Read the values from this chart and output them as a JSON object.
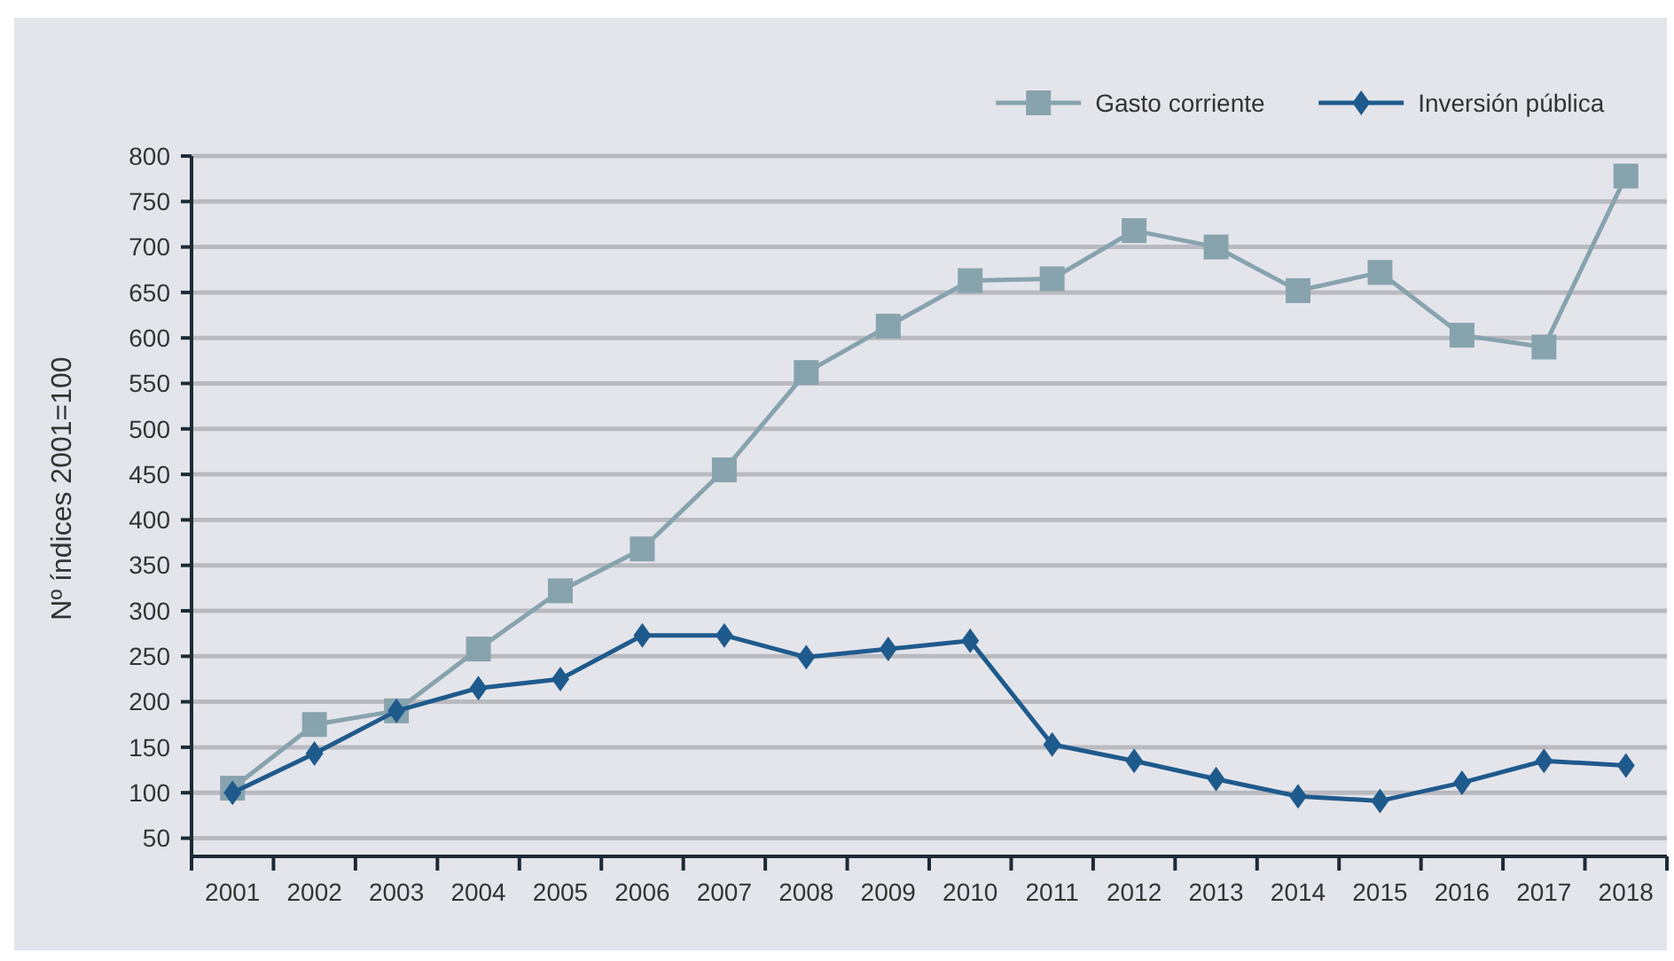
{
  "chart_data": {
    "type": "line",
    "ylabel": "Nº índices 2001=100",
    "categories": [
      "2001",
      "2002",
      "2003",
      "2004",
      "2005",
      "2006",
      "2007",
      "2008",
      "2009",
      "2010",
      "2011",
      "2012",
      "2013",
      "2014",
      "2015",
      "2016",
      "2017",
      "2018"
    ],
    "series": [
      {
        "name": "Gasto corriente",
        "color": "#87a3ae",
        "marker": "square",
        "values": [
          105,
          175,
          190,
          258,
          322,
          368,
          455,
          562,
          613,
          663,
          665,
          718,
          700,
          652,
          672,
          603,
          590,
          778
        ]
      },
      {
        "name": "Inversión pública",
        "color": "#1f5a8c",
        "marker": "diamond",
        "values": [
          100,
          143,
          190,
          215,
          225,
          273,
          273,
          249,
          258,
          267,
          153,
          135,
          115,
          96,
          91,
          111,
          135,
          130
        ]
      }
    ],
    "ylim": [
      30,
      800
    ],
    "yticks": [
      50,
      100,
      150,
      200,
      250,
      300,
      350,
      400,
      450,
      500,
      550,
      600,
      650,
      700,
      750,
      800
    ],
    "grid": "y",
    "legend": "top right"
  }
}
